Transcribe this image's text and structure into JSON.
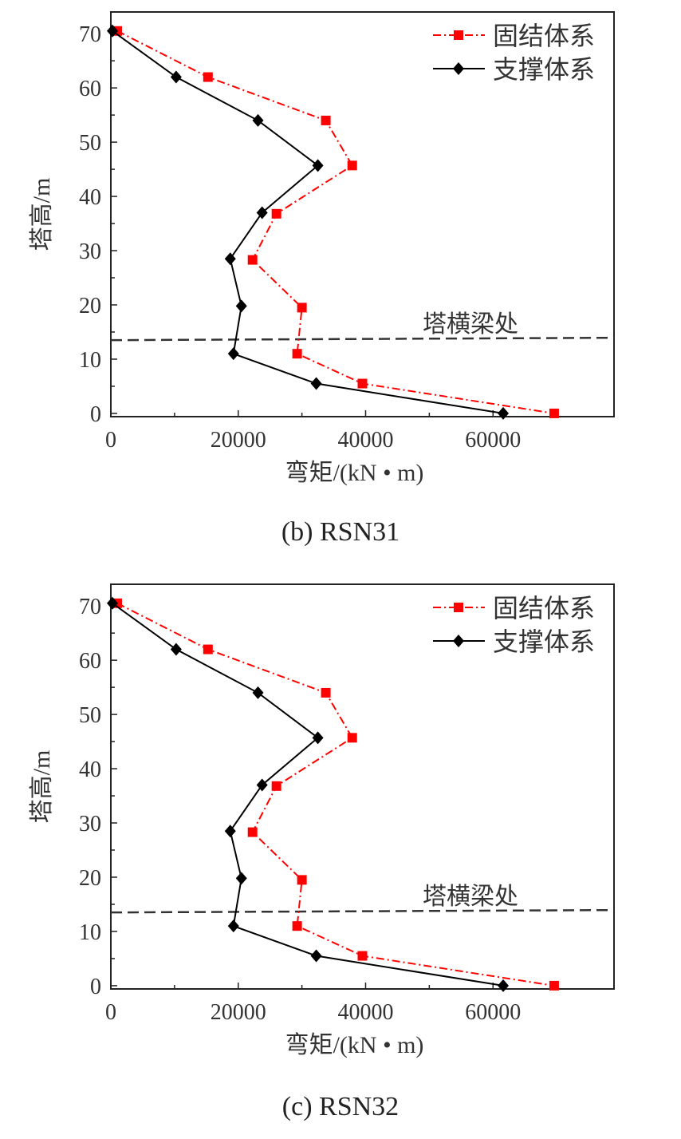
{
  "chart_data": [
    {
      "type": "line",
      "caption": "(b) RSN31",
      "xlabel": "弯矩/(kN • m)",
      "ylabel": "塔高/m",
      "xlim": [
        0,
        79000
      ],
      "ylim": [
        -0.6,
        74
      ],
      "xticks": [
        0,
        20000,
        40000,
        60000
      ],
      "yticks": [
        0,
        10,
        20,
        30,
        40,
        50,
        60,
        70
      ],
      "grid": false,
      "legend_position": "top-right",
      "annotation": {
        "text": "塔横梁处",
        "y": 13.5
      },
      "series": [
        {
          "name": "固结体系",
          "color": "#ff0000",
          "style": "dash-dot",
          "marker": "square",
          "x": [
            1000,
            15250,
            33750,
            37900,
            26000,
            22250,
            30000,
            29250,
            39500,
            69600
          ],
          "y": [
            70.5,
            62,
            54,
            45.7,
            36.8,
            28.3,
            19.5,
            11,
            5.5,
            0
          ]
        },
        {
          "name": "支撑体系",
          "color": "#000000",
          "style": "solid",
          "marker": "diamond",
          "x": [
            250,
            10250,
            23100,
            32500,
            23750,
            18750,
            20500,
            19250,
            32250,
            61600
          ],
          "y": [
            70.5,
            62,
            54,
            45.7,
            37,
            28.5,
            19.8,
            11,
            5.5,
            0
          ]
        }
      ]
    },
    {
      "type": "line",
      "caption": "(c) RSN32",
      "xlabel": "弯矩/(kN • m)",
      "ylabel": "塔高/m",
      "xlim": [
        0,
        79000
      ],
      "ylim": [
        -0.6,
        74
      ],
      "xticks": [
        0,
        20000,
        40000,
        60000
      ],
      "yticks": [
        0,
        10,
        20,
        30,
        40,
        50,
        60,
        70
      ],
      "grid": false,
      "legend_position": "top-right",
      "annotation": {
        "text": "塔横梁处",
        "y": 13.5
      },
      "series": [
        {
          "name": "固结体系",
          "color": "#ff0000",
          "style": "dash-dot",
          "marker": "square",
          "x": [
            1000,
            15250,
            33750,
            37900,
            26000,
            22250,
            30000,
            29250,
            39500,
            69600
          ],
          "y": [
            70.5,
            62,
            54,
            45.7,
            36.8,
            28.3,
            19.5,
            11,
            5.5,
            0
          ]
        },
        {
          "name": "支撑体系",
          "color": "#000000",
          "style": "solid",
          "marker": "diamond",
          "x": [
            250,
            10250,
            23100,
            32500,
            23750,
            18750,
            20500,
            19250,
            32250,
            61600
          ],
          "y": [
            70.5,
            62,
            54,
            45.7,
            37,
            28.5,
            19.8,
            11,
            5.5,
            0
          ]
        }
      ]
    }
  ]
}
